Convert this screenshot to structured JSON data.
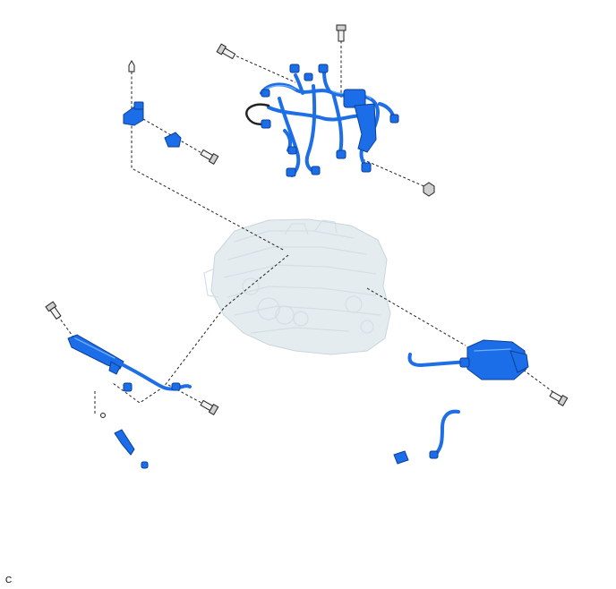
{
  "figure": {
    "code": "C"
  },
  "colors": {
    "part": "#1c6ee8",
    "part_outline": "#0a3f9a",
    "engine": "#e4ecf0",
    "leader_line": "#222222"
  },
  "icons": [
    "bolt-icon",
    "nut-icon",
    "clip-icon",
    "connector-icon"
  ]
}
